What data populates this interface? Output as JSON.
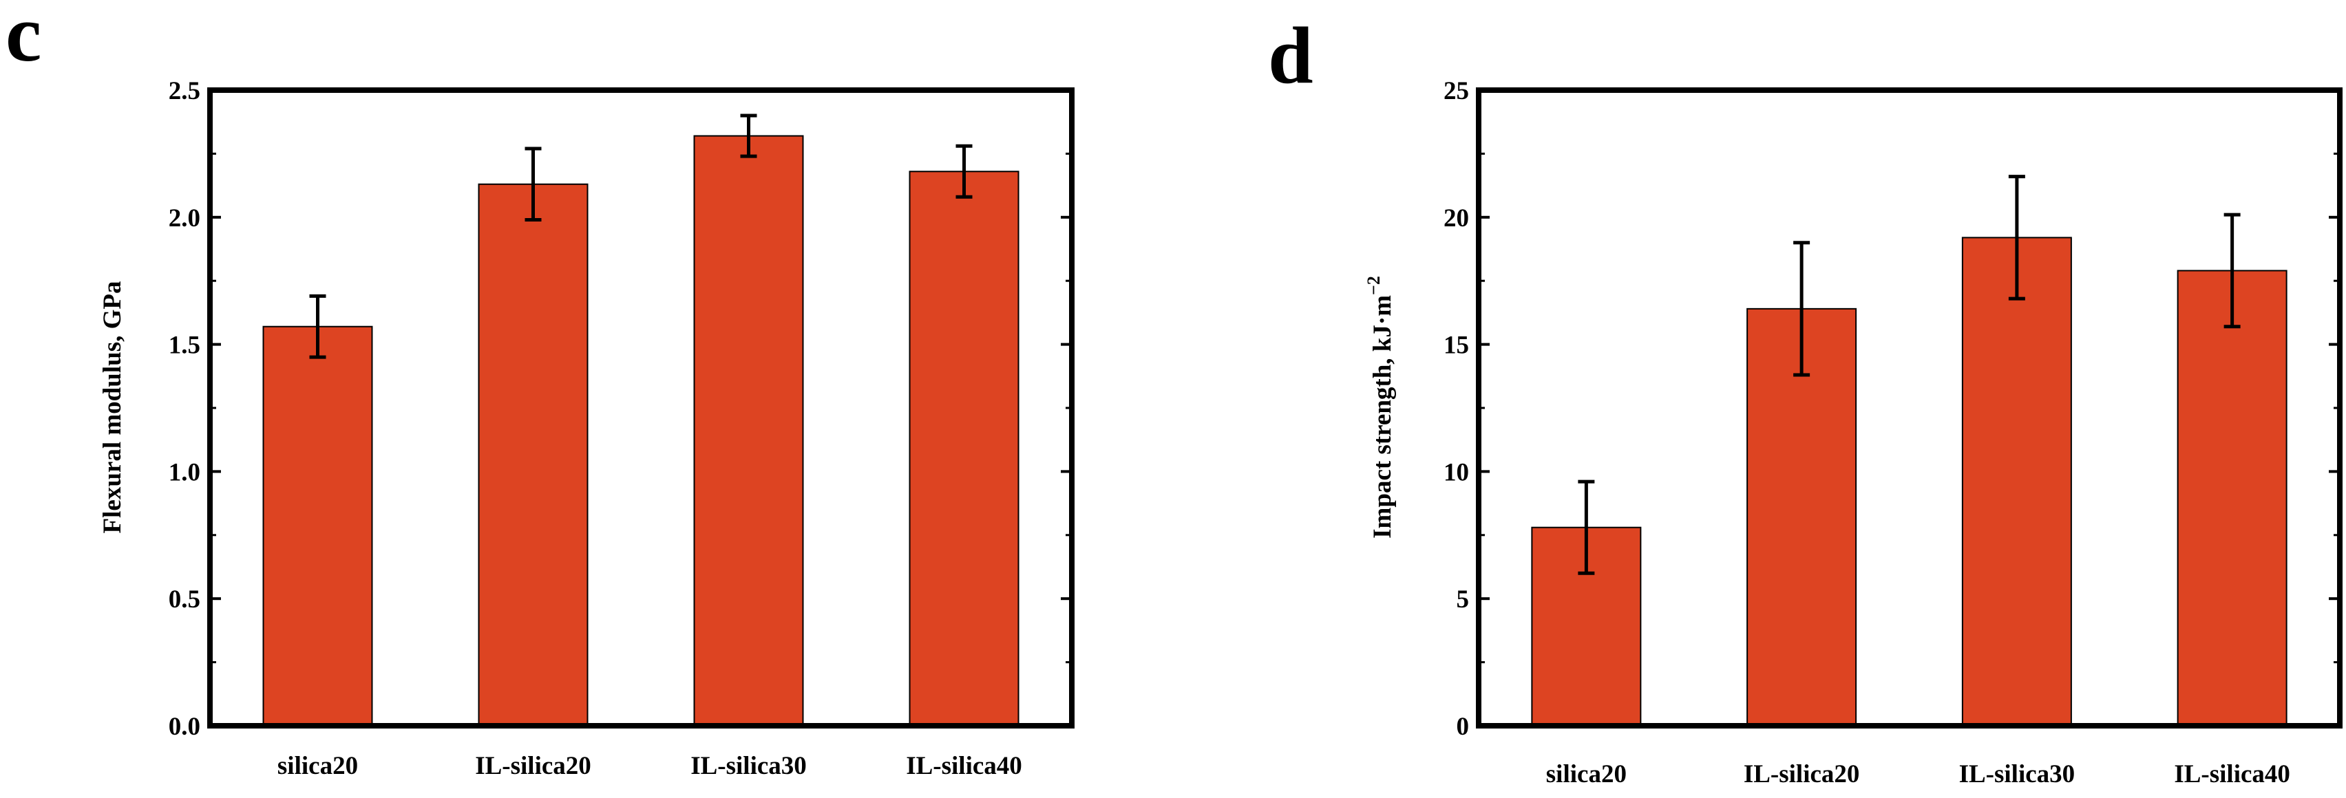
{
  "colors": {
    "bar": "#dd4422",
    "axis": "#000000",
    "background": "#ffffff"
  },
  "chart_data": [
    {
      "type": "bar",
      "panel_label": "c",
      "title": "",
      "xlabel": "",
      "ylabel": "Flexural modulus, GPa",
      "ylim": [
        0,
        2.5
      ],
      "yticks": [
        "0.0",
        "0.5",
        "1.0",
        "1.5",
        "2.0",
        "2.5"
      ],
      "categories": [
        "silica20",
        "IL-silica20",
        "IL-silica30",
        "IL-silica40"
      ],
      "series": [
        {
          "name": "Flexural modulus",
          "values": [
            1.57,
            2.13,
            2.32,
            2.18
          ],
          "errors": [
            0.12,
            0.14,
            0.08,
            0.1
          ]
        }
      ],
      "grid": false
    },
    {
      "type": "bar",
      "panel_label": "d",
      "title": "",
      "xlabel": "",
      "ylabel": "Impact strength, kJ·m",
      "ylabel_superscript": "−2",
      "ylim": [
        0,
        25
      ],
      "yticks": [
        "0",
        "5",
        "10",
        "15",
        "20",
        "25"
      ],
      "categories": [
        "silica20",
        "IL-silica20",
        "IL-silica30",
        "IL-silica40"
      ],
      "series": [
        {
          "name": "Impact strength",
          "values": [
            7.8,
            16.4,
            19.2,
            17.9
          ],
          "errors": [
            1.8,
            2.6,
            2.4,
            2.2
          ]
        }
      ],
      "grid": false
    }
  ]
}
